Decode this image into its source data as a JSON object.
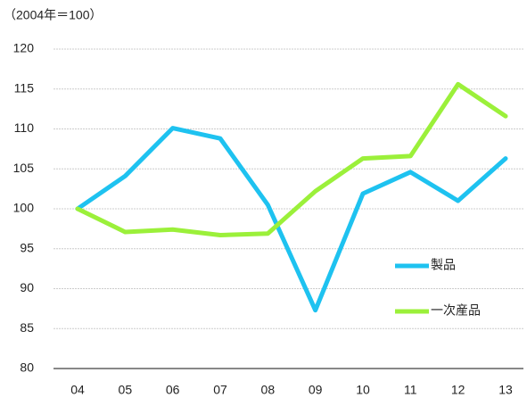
{
  "chart_data": {
    "type": "line",
    "ylabel": "（2004年＝100）",
    "categories": [
      "04",
      "05",
      "06",
      "07",
      "08",
      "09",
      "10",
      "11",
      "12",
      "13"
    ],
    "series": [
      {
        "name": "製品",
        "color": "#1ec2f0",
        "values": [
          100,
          104.1,
          110.1,
          108.8,
          100.5,
          87.3,
          101.9,
          104.6,
          101,
          106.3
        ]
      },
      {
        "name": "一次産品",
        "color": "#9bf03a",
        "values": [
          100,
          97.1,
          97.4,
          96.7,
          96.9,
          102.2,
          106.3,
          106.6,
          115.6,
          111.6
        ]
      }
    ],
    "ylim": [
      80,
      120
    ],
    "yticks": [
      80,
      85,
      90,
      95,
      100,
      105,
      110,
      115,
      120
    ],
    "grid": true,
    "legend": "right"
  }
}
